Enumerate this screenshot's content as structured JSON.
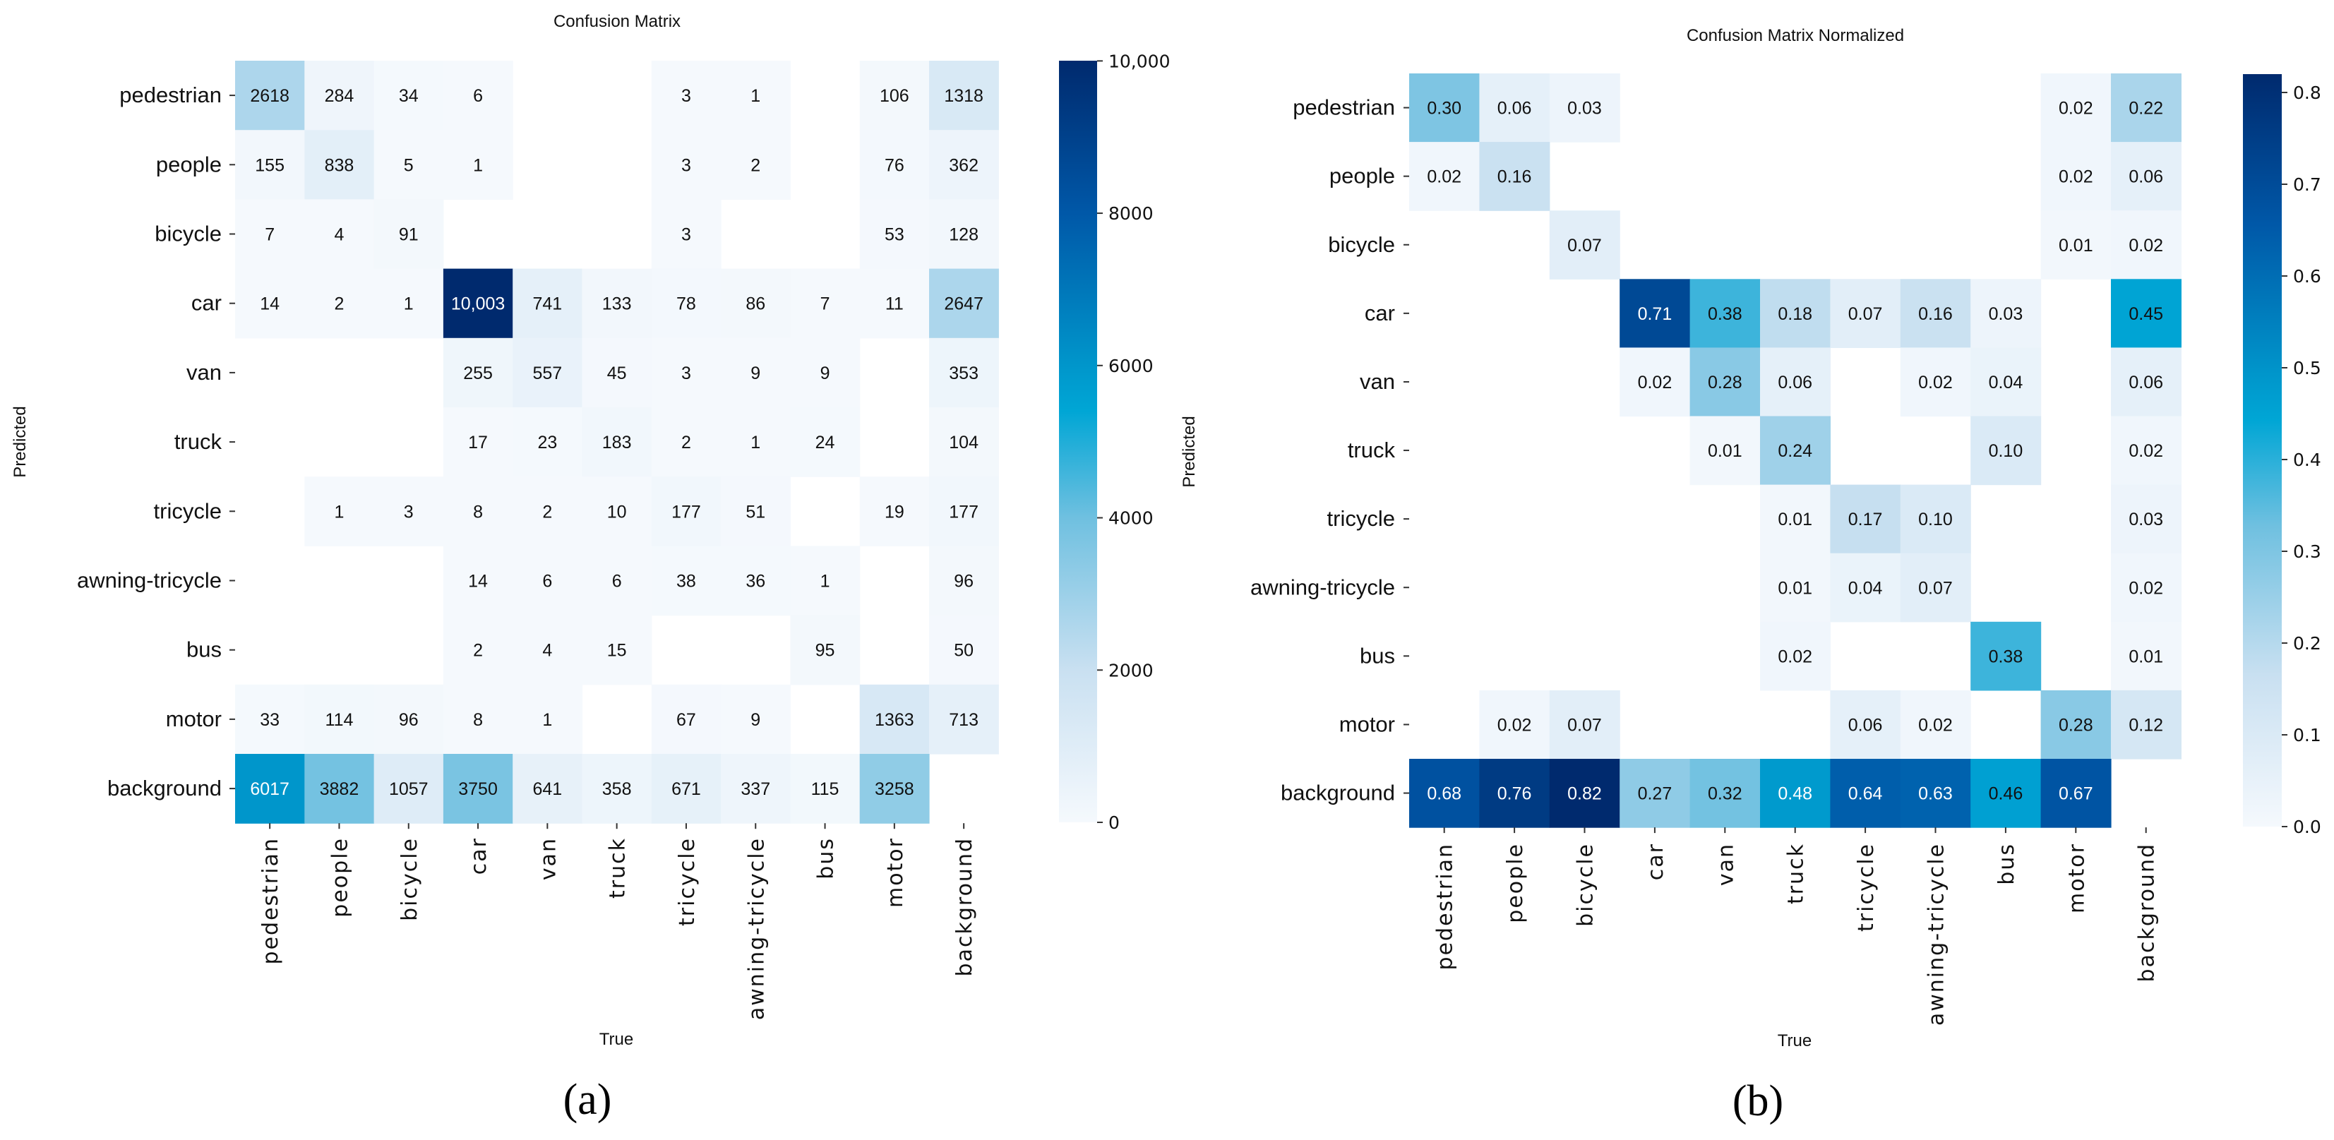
{
  "chart_data": [
    {
      "type": "heatmap",
      "title": "Confusion Matrix",
      "xlabel": "True",
      "ylabel": "Predicted",
      "panel_label": "(a)",
      "x_categories": [
        "pedestrian",
        "people",
        "bicycle",
        "car",
        "van",
        "truck",
        "tricycle",
        "awning-tricycle",
        "bus",
        "motor",
        "background"
      ],
      "y_categories": [
        "pedestrian",
        "people",
        "bicycle",
        "car",
        "van",
        "truck",
        "tricycle",
        "awning-tricycle",
        "bus",
        "motor",
        "background"
      ],
      "values": [
        [
          2618,
          284,
          34,
          6,
          null,
          null,
          3,
          1,
          null,
          106,
          1318
        ],
        [
          155,
          838,
          5,
          1,
          null,
          null,
          3,
          2,
          null,
          76,
          362
        ],
        [
          7,
          4,
          91,
          null,
          null,
          null,
          3,
          null,
          null,
          53,
          128
        ],
        [
          14,
          2,
          1,
          10003,
          741,
          133,
          78,
          86,
          7,
          11,
          2647
        ],
        [
          null,
          null,
          null,
          255,
          557,
          45,
          3,
          9,
          9,
          null,
          353
        ],
        [
          null,
          null,
          null,
          17,
          23,
          183,
          2,
          1,
          24,
          null,
          104
        ],
        [
          null,
          1,
          3,
          8,
          2,
          10,
          177,
          51,
          null,
          19,
          177
        ],
        [
          null,
          null,
          null,
          14,
          6,
          6,
          38,
          36,
          1,
          null,
          96
        ],
        [
          null,
          null,
          null,
          2,
          4,
          15,
          null,
          null,
          95,
          null,
          50
        ],
        [
          33,
          114,
          96,
          8,
          1,
          null,
          67,
          9,
          null,
          1363,
          713
        ],
        [
          6017,
          3882,
          1057,
          3750,
          641,
          358,
          671,
          337,
          115,
          3258,
          null
        ]
      ],
      "display": [
        [
          "2618",
          "284",
          "34",
          "6",
          "",
          "",
          "3",
          "1",
          "",
          "106",
          "1318"
        ],
        [
          "155",
          "838",
          "5",
          "1",
          "",
          "",
          "3",
          "2",
          "",
          "76",
          "362"
        ],
        [
          "7",
          "4",
          "91",
          "",
          "",
          "",
          "3",
          "",
          "",
          "53",
          "128"
        ],
        [
          "14",
          "2",
          "1",
          "10,003",
          "741",
          "133",
          "78",
          "86",
          "7",
          "11",
          "2647"
        ],
        [
          "",
          "",
          "",
          "255",
          "557",
          "45",
          "3",
          "9",
          "9",
          "",
          "353"
        ],
        [
          "",
          "",
          "",
          "17",
          "23",
          "183",
          "2",
          "1",
          "24",
          "",
          "104"
        ],
        [
          "",
          "1",
          "3",
          "8",
          "2",
          "10",
          "177",
          "51",
          "",
          "19",
          "177"
        ],
        [
          "",
          "",
          "",
          "14",
          "6",
          "6",
          "38",
          "36",
          "1",
          "",
          "96"
        ],
        [
          "",
          "",
          "",
          "2",
          "4",
          "15",
          "",
          "",
          "95",
          "",
          "50"
        ],
        [
          "33",
          "114",
          "96",
          "8",
          "1",
          "",
          "67",
          "9",
          "",
          "1363",
          "713"
        ],
        [
          "6017",
          "3882",
          "1057",
          "3750",
          "641",
          "358",
          "671",
          "337",
          "115",
          "3258",
          ""
        ]
      ],
      "colorbar": {
        "range": [
          0,
          10003
        ],
        "ticks": [
          0,
          2000,
          4000,
          6000,
          8000,
          10000
        ],
        "tick_labels": [
          "0",
          "2000",
          "4000",
          "6000",
          "8000",
          "10,000"
        ]
      },
      "colormap": "Blues",
      "grid": false
    },
    {
      "type": "heatmap",
      "title": "Confusion Matrix Normalized",
      "xlabel": "True",
      "ylabel": "Predicted",
      "panel_label": "(b)",
      "x_categories": [
        "pedestrian",
        "people",
        "bicycle",
        "car",
        "van",
        "truck",
        "tricycle",
        "awning-tricycle",
        "bus",
        "motor",
        "background"
      ],
      "y_categories": [
        "pedestrian",
        "people",
        "bicycle",
        "car",
        "van",
        "truck",
        "tricycle",
        "awning-tricycle",
        "bus",
        "motor",
        "background"
      ],
      "values": [
        [
          0.3,
          0.06,
          0.03,
          null,
          null,
          null,
          null,
          null,
          null,
          0.02,
          0.22
        ],
        [
          0.02,
          0.16,
          null,
          null,
          null,
          null,
          null,
          null,
          null,
          0.02,
          0.06
        ],
        [
          null,
          null,
          0.07,
          null,
          null,
          null,
          null,
          null,
          null,
          0.01,
          0.02
        ],
        [
          null,
          null,
          null,
          0.71,
          0.38,
          0.18,
          0.07,
          0.16,
          0.03,
          null,
          0.45
        ],
        [
          null,
          null,
          null,
          0.02,
          0.28,
          0.06,
          null,
          0.02,
          0.04,
          null,
          0.06
        ],
        [
          null,
          null,
          null,
          null,
          0.01,
          0.24,
          null,
          null,
          0.1,
          null,
          0.02
        ],
        [
          null,
          null,
          null,
          null,
          null,
          0.01,
          0.17,
          0.1,
          null,
          null,
          0.03
        ],
        [
          null,
          null,
          null,
          null,
          null,
          0.01,
          0.04,
          0.07,
          null,
          null,
          0.02
        ],
        [
          null,
          null,
          null,
          null,
          null,
          0.02,
          null,
          null,
          0.38,
          null,
          0.01
        ],
        [
          null,
          0.02,
          0.07,
          null,
          null,
          null,
          0.06,
          0.02,
          null,
          0.28,
          0.12
        ],
        [
          0.68,
          0.76,
          0.82,
          0.27,
          0.32,
          0.48,
          0.64,
          0.63,
          0.46,
          0.67,
          null
        ]
      ],
      "colorbar": {
        "range": [
          0,
          0.82
        ],
        "ticks": [
          0,
          0.1,
          0.2,
          0.3,
          0.4,
          0.5,
          0.6,
          0.7,
          0.8
        ],
        "tick_labels": [
          "0.0",
          "0.1",
          "0.2",
          "0.3",
          "0.4",
          "0.5",
          "0.6",
          "0.7",
          "0.8"
        ]
      },
      "colormap": "Blues",
      "grid": false
    }
  ]
}
